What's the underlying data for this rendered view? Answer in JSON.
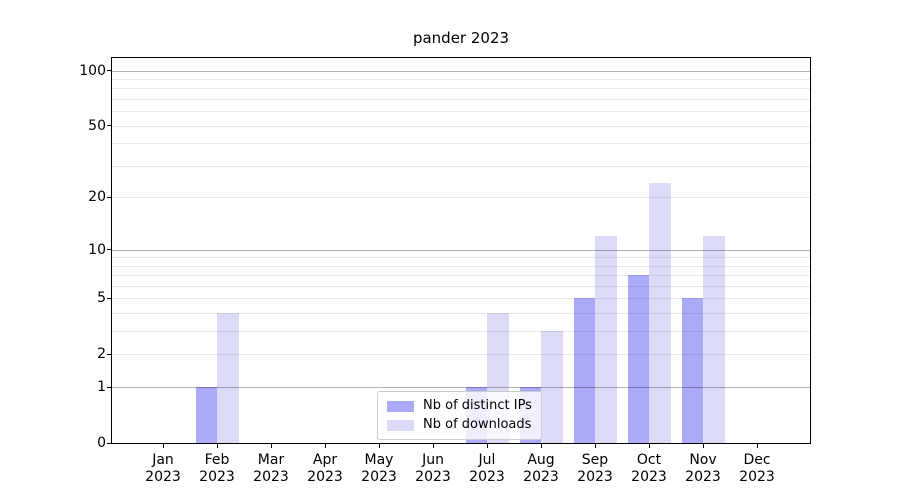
{
  "chart_data": {
    "type": "bar",
    "title": "pander 2023",
    "categories": [
      "Jan",
      "Feb",
      "Mar",
      "Apr",
      "May",
      "Jun",
      "Jul",
      "Aug",
      "Sep",
      "Oct",
      "Nov",
      "Dec"
    ],
    "category_year": "2023",
    "series": [
      {
        "name": "Nb of distinct IPs",
        "color": "#aaaaf8",
        "values": [
          0,
          1,
          0,
          0,
          0,
          0,
          1,
          1,
          5,
          7,
          5,
          0
        ]
      },
      {
        "name": "Nb of downloads",
        "color": "#dbdbf8",
        "values": [
          0,
          4,
          0,
          0,
          0,
          0,
          4,
          3,
          12,
          24,
          12,
          0
        ]
      }
    ],
    "yscale": "log1p",
    "ylim": [
      0,
      118
    ],
    "yticks": [
      0,
      1,
      2,
      5,
      10,
      20,
      50,
      100
    ],
    "major_gridlines": [
      1,
      10,
      100
    ],
    "minor_gridlines": [
      2,
      3,
      4,
      5,
      6,
      7,
      8,
      9,
      20,
      30,
      40,
      50,
      60,
      70,
      80,
      90
    ],
    "grid": true,
    "legend_position": "lower center",
    "axis_color": "#000000"
  }
}
